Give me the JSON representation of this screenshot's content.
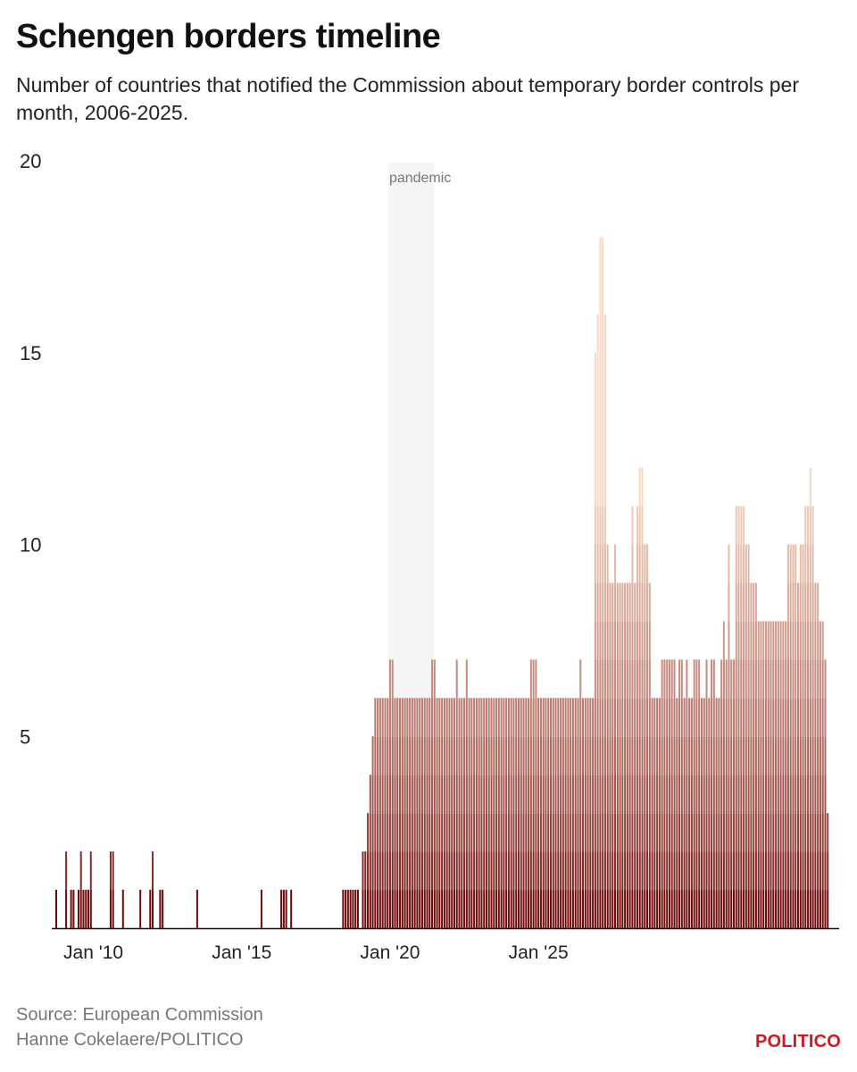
{
  "title": "Schengen borders timeline",
  "subtitle": "Number of countries that notified the Commission about temporary border controls per month, 2006-2025.",
  "source": "Source: European Commission",
  "credit": "Hanne Cokelaere/POLITICO",
  "brand": "POLITICO",
  "colors": {
    "brand": "#d7171f",
    "bar_dark": "#6e0a0a",
    "bar_light": "#f9d7c2",
    "annotation_band": "#f5f5f5"
  },
  "chart_data": {
    "type": "bar",
    "x_unit": "month",
    "x_start": "2008-10",
    "ylim": [
      0,
      20
    ],
    "yticks": [
      5,
      10,
      15,
      20
    ],
    "ytick_labels": [
      "5",
      "10",
      "15",
      "20"
    ],
    "xticks": [
      {
        "date": "2010-01",
        "label": "Jan '10"
      },
      {
        "date": "2015-01",
        "label": "Jan '15"
      },
      {
        "date": "2020-01",
        "label": "Jan '20"
      },
      {
        "date": "2025-01",
        "label": "Jan '25"
      }
    ],
    "annotations": [
      {
        "label": "pandemic",
        "start": "2020-01",
        "end": "2021-06"
      }
    ],
    "grid": false,
    "stacking": "each bar is stacked by notifying country, one segment per country, shaded from dark (bottom) to light (top)",
    "values": [
      1,
      0,
      0,
      0,
      2,
      0,
      1,
      1,
      0,
      1,
      2,
      1,
      1,
      1,
      2,
      0,
      0,
      0,
      0,
      0,
      0,
      0,
      2,
      2,
      0,
      0,
      0,
      1,
      0,
      0,
      0,
      0,
      0,
      0,
      1,
      0,
      0,
      0,
      1,
      2,
      0,
      0,
      1,
      1,
      0,
      0,
      0,
      0,
      0,
      0,
      0,
      0,
      0,
      0,
      0,
      0,
      0,
      1,
      0,
      0,
      0,
      0,
      0,
      0,
      0,
      0,
      0,
      0,
      0,
      0,
      0,
      0,
      0,
      0,
      0,
      0,
      0,
      0,
      0,
      0,
      0,
      0,
      0,
      1,
      0,
      0,
      0,
      0,
      0,
      0,
      0,
      1,
      1,
      1,
      0,
      1,
      0,
      0,
      0,
      0,
      0,
      0,
      0,
      0,
      0,
      0,
      0,
      0,
      0,
      0,
      0,
      0,
      0,
      0,
      0,
      0,
      1,
      1,
      1,
      1,
      1,
      1,
      1,
      0,
      2,
      2,
      3,
      4,
      5,
      6,
      6,
      6,
      6,
      6,
      6,
      7,
      7,
      6,
      6,
      6,
      6,
      6,
      6,
      6,
      6,
      6,
      6,
      6,
      6,
      6,
      6,
      6,
      7,
      7,
      6,
      6,
      6,
      6,
      6,
      6,
      6,
      6,
      7,
      6,
      6,
      6,
      7,
      6,
      6,
      6,
      6,
      6,
      6,
      6,
      6,
      6,
      6,
      6,
      6,
      6,
      6,
      6,
      6,
      6,
      6,
      6,
      6,
      6,
      6,
      6,
      6,
      6,
      7,
      7,
      7,
      6,
      6,
      6,
      6,
      6,
      6,
      6,
      6,
      6,
      6,
      6,
      6,
      6,
      6,
      6,
      6,
      6,
      7,
      6,
      6,
      6,
      6,
      6,
      15,
      16,
      18,
      18,
      16,
      10,
      9,
      9,
      10,
      9,
      9,
      9,
      9,
      9,
      9,
      11,
      9,
      11,
      12,
      12,
      10,
      10,
      9,
      6,
      6,
      6,
      6,
      7,
      7,
      7,
      7,
      7,
      7,
      6,
      7,
      7,
      6,
      7,
      6,
      6,
      7,
      7,
      7,
      6,
      6,
      7,
      6,
      7,
      7,
      6,
      6,
      7,
      8,
      7,
      10,
      7,
      7,
      11,
      11,
      11,
      11,
      10,
      10,
      9,
      9,
      9,
      8,
      8,
      8,
      8,
      8,
      8,
      8,
      8,
      8,
      8,
      8,
      8,
      10,
      10,
      10,
      10,
      9,
      10,
      10,
      11,
      11,
      12,
      11,
      9,
      9,
      8,
      8,
      7,
      3
    ]
  }
}
